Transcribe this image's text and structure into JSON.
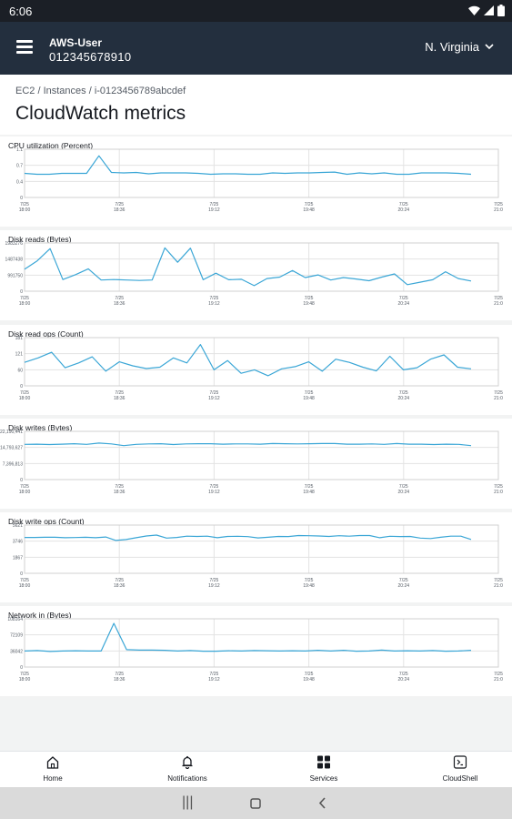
{
  "status": {
    "time": "6:06"
  },
  "appbar": {
    "user": "AWS-User",
    "account": "012345678910",
    "region": "N. Virginia"
  },
  "page": {
    "breadcrumb": "EC2 / Instances / i-0123456789abcdef",
    "title": "CloudWatch metrics"
  },
  "colors": {
    "line": "#3aa6d6",
    "appbar": "#232f3e",
    "statusbar": "#1b1f26"
  },
  "chart_data": [
    {
      "type": "line",
      "title": "CPU utilization (Percent)",
      "yticks": [
        "1.1",
        "0.7",
        "0.4",
        "0"
      ],
      "xticks": [
        [
          "7/25",
          "18:00"
        ],
        [
          "7/25",
          "18:36"
        ],
        [
          "7/25",
          "19:12"
        ],
        [
          "7/25",
          "19:48"
        ],
        [
          "7/25",
          "20:24"
        ],
        [
          "7/25",
          "21:0"
        ]
      ],
      "ylim": [
        0,
        1.1
      ],
      "values": [
        0.55,
        0.53,
        0.53,
        0.55,
        0.55,
        0.55,
        0.95,
        0.57,
        0.56,
        0.57,
        0.54,
        0.56,
        0.56,
        0.56,
        0.55,
        0.53,
        0.54,
        0.54,
        0.53,
        0.53,
        0.56,
        0.55,
        0.56,
        0.56,
        0.57,
        0.58,
        0.53,
        0.56,
        0.54,
        0.56,
        0.53,
        0.53,
        0.56,
        0.56,
        0.56,
        0.55,
        0.53
      ]
    },
    {
      "type": "line",
      "title": "Disk reads (Bytes)",
      "yticks": [
        "1983276",
        "1487438",
        "991750",
        "0"
      ],
      "xticks": [
        [
          "7/25",
          "18:00"
        ],
        [
          "7/25",
          "18:36"
        ],
        [
          "7/25",
          "19:12"
        ],
        [
          "7/25",
          "19:48"
        ],
        [
          "7/25",
          "20:24"
        ],
        [
          "7/25",
          "21:0"
        ]
      ],
      "ylim": [
        0,
        1983276
      ],
      "values": [
        900000,
        1250000,
        1750000,
        480000,
        680000,
        920000,
        460000,
        480000,
        460000,
        440000,
        460000,
        1780000,
        1190000,
        1770000,
        470000,
        740000,
        470000,
        490000,
        230000,
        520000,
        580000,
        850000,
        560000,
        670000,
        460000,
        560000,
        500000,
        430000,
        580000,
        710000,
        270000,
        370000,
        470000,
        800000,
        520000,
        420000
      ]
    },
    {
      "type": "line",
      "title": "Disk read ops (Count)",
      "yticks": [
        "181",
        "121",
        "60",
        "0"
      ],
      "xticks": [
        [
          "7/25",
          "18:00"
        ],
        [
          "7/25",
          "18:36"
        ],
        [
          "7/25",
          "19:12"
        ],
        [
          "7/25",
          "19:48"
        ],
        [
          "7/25",
          "20:24"
        ],
        [
          "7/25",
          "21:0"
        ]
      ],
      "ylim": [
        0,
        181
      ],
      "values": [
        88,
        105,
        126,
        68,
        86,
        109,
        55,
        90,
        75,
        65,
        70,
        105,
        86,
        155,
        60,
        95,
        47,
        60,
        38,
        64,
        72,
        90,
        55,
        100,
        88,
        70,
        56,
        111,
        60,
        68,
        100,
        116,
        70,
        64
      ]
    },
    {
      "type": "line",
      "title": "Disk writes (Bytes)",
      "yticks": [
        "22,190,441",
        "14,793,627",
        "7,396,813",
        "0"
      ],
      "xticks": [
        [
          "7/25",
          "18:00"
        ],
        [
          "7/25",
          "18:36"
        ],
        [
          "7/25",
          "19:12"
        ],
        [
          "7/25",
          "19:48"
        ],
        [
          "7/25",
          "20:24"
        ],
        [
          "7/25",
          "21:0"
        ]
      ],
      "ylim": [
        0,
        22190441
      ],
      "values": [
        16200000.0,
        16300000.0,
        16100000.0,
        16300000.0,
        16500000.0,
        16200000.0,
        16800000.0,
        16400000.0,
        15600000.0,
        16200000.0,
        16400000.0,
        16500000.0,
        16100000.0,
        16400000.0,
        16500000.0,
        16500000.0,
        16300000.0,
        16400000.0,
        16400000.0,
        16300000.0,
        16600000.0,
        16500000.0,
        16400000.0,
        16500000.0,
        16600000.0,
        16600000.0,
        16300000.0,
        16300000.0,
        16400000.0,
        16200000.0,
        16600000.0,
        16300000.0,
        16300000.0,
        16100000.0,
        16300000.0,
        16200000.0,
        15600000.0
      ]
    },
    {
      "type": "line",
      "title": "Disk write ops (Count)",
      "yticks": [
        "5621",
        "3746",
        "1867",
        "0"
      ],
      "xticks": [
        [
          "7/25",
          "18:00"
        ],
        [
          "7/25",
          "18:36"
        ],
        [
          "7/25",
          "19:12"
        ],
        [
          "7/25",
          "19:48"
        ],
        [
          "7/25",
          "20:24"
        ],
        [
          "7/25",
          "21:0"
        ]
      ],
      "ylim": [
        0,
        5621
      ],
      "values": [
        4180,
        4180,
        4200,
        4200,
        4150,
        4170,
        4200,
        4150,
        4230,
        3830,
        3940,
        4150,
        4350,
        4450,
        4100,
        4180,
        4330,
        4300,
        4330,
        4150,
        4300,
        4320,
        4270,
        4130,
        4200,
        4300,
        4280,
        4400,
        4380,
        4350,
        4300,
        4380,
        4330,
        4400,
        4400,
        4150,
        4320,
        4280,
        4300,
        4100,
        4050,
        4200,
        4330,
        4330,
        3950
      ]
    },
    {
      "type": "line",
      "title": "Network in (Bytes)",
      "yticks": [
        "108164",
        "72109",
        "36042",
        "0"
      ],
      "xticks": [
        [
          "7/25",
          "18:00"
        ],
        [
          "7/25",
          "18:36"
        ],
        [
          "7/25",
          "19:12"
        ],
        [
          "7/25",
          "19:48"
        ],
        [
          "7/25",
          "20:24"
        ],
        [
          "7/25",
          "21:0"
        ]
      ],
      "ylim": [
        0,
        108164
      ],
      "values": [
        36000,
        37000,
        35000,
        36000,
        36500,
        36000,
        36000,
        98000,
        39000,
        38000,
        38000,
        37500,
        36000,
        37000,
        35500,
        35500,
        36500,
        36000,
        37000,
        36500,
        36000,
        36500,
        36000,
        37500,
        36000,
        37500,
        35500,
        36000,
        38000,
        36000,
        36500,
        36000,
        37000,
        35500,
        36000,
        37500
      ]
    }
  ],
  "tabs": [
    {
      "label": "Home",
      "icon": "home-icon"
    },
    {
      "label": "Notifications",
      "icon": "bell-icon"
    },
    {
      "label": "Services",
      "icon": "grid-icon"
    },
    {
      "label": "CloudShell",
      "icon": "terminal-icon"
    }
  ]
}
